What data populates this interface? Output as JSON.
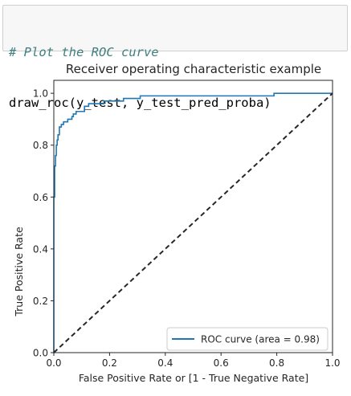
{
  "code_cell": {
    "comment": "# Plot the ROC curve",
    "code": "draw_roc(y_test, y_test_pred_proba)"
  },
  "chart_data": {
    "type": "line",
    "title": "Receiver operating characteristic example",
    "xlabel": "False Positive Rate or [1 - True Negative Rate]",
    "ylabel": "True Positive Rate",
    "xlim": [
      0.0,
      1.0
    ],
    "ylim": [
      0.0,
      1.05
    ],
    "x_ticks": [
      0.0,
      0.2,
      0.4,
      0.6,
      0.8,
      1.0
    ],
    "x_tick_labels": [
      "0.0",
      "0.2",
      "0.4",
      "0.6",
      "0.8",
      "1.0"
    ],
    "y_ticks": [
      0.0,
      0.2,
      0.4,
      0.6,
      0.8,
      1.0
    ],
    "y_tick_labels": [
      "0.0",
      "0.2",
      "0.4",
      "0.6",
      "0.8",
      "1.0"
    ],
    "grid": false,
    "legend": {
      "placement": "lower-right",
      "entries": [
        "ROC curve (area = 0.98)"
      ]
    },
    "series": [
      {
        "name": "ROC curve (area = 0.98)",
        "color": "#1f77b4",
        "style": "solid",
        "points": [
          [
            0.0,
            0.0
          ],
          [
            0.0,
            0.6
          ],
          [
            0.003,
            0.6
          ],
          [
            0.003,
            0.72
          ],
          [
            0.006,
            0.72
          ],
          [
            0.006,
            0.76
          ],
          [
            0.009,
            0.76
          ],
          [
            0.009,
            0.8
          ],
          [
            0.012,
            0.8
          ],
          [
            0.012,
            0.82
          ],
          [
            0.015,
            0.82
          ],
          [
            0.015,
            0.84
          ],
          [
            0.02,
            0.84
          ],
          [
            0.02,
            0.87
          ],
          [
            0.027,
            0.87
          ],
          [
            0.027,
            0.88
          ],
          [
            0.035,
            0.88
          ],
          [
            0.035,
            0.89
          ],
          [
            0.05,
            0.89
          ],
          [
            0.05,
            0.9
          ],
          [
            0.065,
            0.9
          ],
          [
            0.065,
            0.91
          ],
          [
            0.07,
            0.91
          ],
          [
            0.07,
            0.92
          ],
          [
            0.08,
            0.92
          ],
          [
            0.08,
            0.93
          ],
          [
            0.11,
            0.93
          ],
          [
            0.11,
            0.95
          ],
          [
            0.125,
            0.95
          ],
          [
            0.125,
            0.96
          ],
          [
            0.18,
            0.96
          ],
          [
            0.18,
            0.97
          ],
          [
            0.25,
            0.97
          ],
          [
            0.25,
            0.98
          ],
          [
            0.31,
            0.98
          ],
          [
            0.31,
            0.99
          ],
          [
            0.79,
            0.99
          ],
          [
            0.79,
            1.0
          ],
          [
            1.0,
            1.0
          ]
        ]
      },
      {
        "name": "",
        "color": "#262626",
        "style": "dashed",
        "points": [
          [
            0.0,
            0.0
          ],
          [
            1.0,
            1.0
          ]
        ]
      }
    ]
  }
}
